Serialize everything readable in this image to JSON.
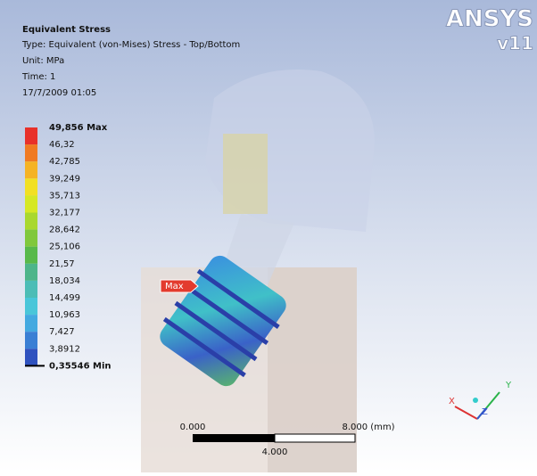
{
  "header": {
    "title": "Equivalent Stress",
    "type": "Type: Equivalent (von-Mises) Stress - Top/Bottom",
    "unit": "Unit: MPa",
    "time": "Time: 1",
    "date": "17/7/2009 01:05"
  },
  "legend": {
    "labels": [
      "49,856 Max",
      "46,32",
      "42,785",
      "39,249",
      "35,713",
      "32,177",
      "28,642",
      "25,106",
      "21,57",
      "18,034",
      "14,499",
      "10,963",
      "7,427",
      "3,8912",
      "0,35546 Min"
    ],
    "colors": [
      "#e8312a",
      "#f07a22",
      "#f5b324",
      "#f2e023",
      "#d6e824",
      "#a9d82e",
      "#80c83c",
      "#58b94a",
      "#4db58a",
      "#4cbdb6",
      "#49c6d9",
      "#43a9e0",
      "#3a7fd4",
      "#2f52bf"
    ]
  },
  "probe": "Max",
  "logo": {
    "brand": "ANSYS",
    "version": "v11"
  },
  "scale_bar": {
    "start": "0.000",
    "end": "8.000 (mm)",
    "middle": "4.000"
  },
  "triad": {
    "x": "X",
    "y": "Y",
    "z": "Z"
  }
}
